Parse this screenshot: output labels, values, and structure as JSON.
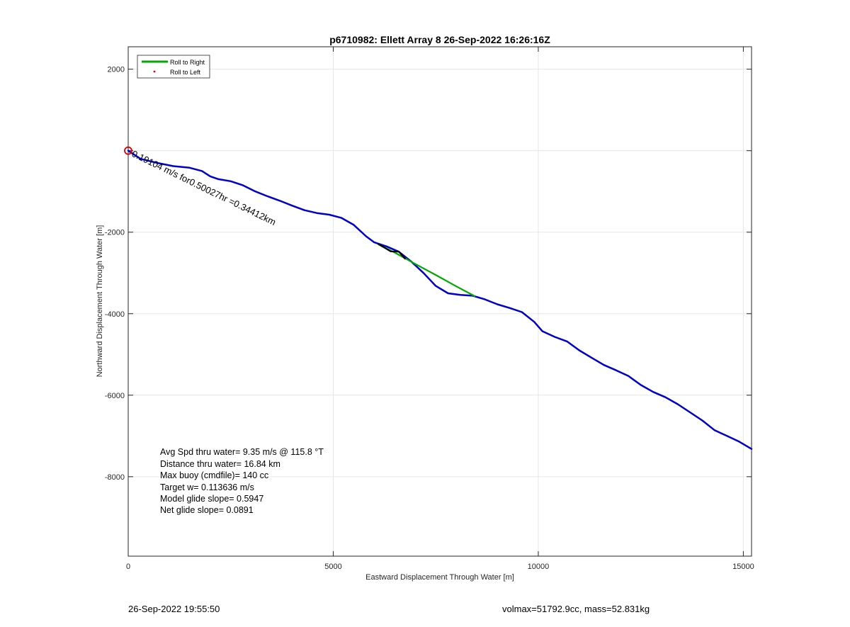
{
  "chart_data": {
    "type": "line",
    "title": "p6710982: Ellett Array 8 26-Sep-2022 16:26:16Z",
    "xlabel": "Eastward Displacement Through Water [m]",
    "ylabel": "Northward Displacement Through Water [m]",
    "xlim": [
      0,
      15200
    ],
    "ylim": [
      -9950,
      2550
    ],
    "xticks": [
      0,
      5000,
      10000,
      15000
    ],
    "yticks": [
      -8000,
      -6000,
      -4000,
      -2000,
      0,
      2000
    ],
    "ytick_labels": [
      "-8000",
      "-6000",
      "-4000",
      "-2000",
      "",
      "2000"
    ],
    "grid": true,
    "legend": {
      "placement": "top-left",
      "entries": [
        "Roll to Right",
        "Roll to Left"
      ]
    },
    "series": [
      {
        "name": "",
        "color": "#0000cc",
        "x": [
          0,
          300,
          700,
          1100,
          1500,
          1800,
          2000,
          2200,
          2500,
          2800,
          3100,
          3400,
          3700,
          4000,
          4300,
          4600,
          4900,
          5200,
          5500,
          5800,
          6000,
          6300,
          6600,
          6900,
          7200,
          7500,
          7800,
          8100,
          8400,
          8700,
          9000,
          9300,
          9600,
          9900,
          10100,
          10400,
          10700,
          11000,
          11300,
          11600,
          11900,
          12200,
          12500,
          12800,
          13100,
          13400,
          13700,
          14000,
          14300,
          14600,
          14900,
          15200
        ],
        "y": [
          0,
          -200,
          -300,
          -380,
          -420,
          -500,
          -630,
          -700,
          -750,
          -850,
          -1000,
          -1120,
          -1230,
          -1350,
          -1460,
          -1530,
          -1570,
          -1650,
          -1820,
          -2100,
          -2250,
          -2350,
          -2480,
          -2720,
          -3000,
          -3320,
          -3500,
          -3540,
          -3560,
          -3650,
          -3770,
          -3860,
          -3960,
          -4200,
          -4430,
          -4570,
          -4680,
          -4900,
          -5080,
          -5260,
          -5390,
          -5530,
          -5750,
          -5920,
          -6050,
          -6220,
          -6420,
          -6620,
          -6860,
          -7000,
          -7140,
          -7320
        ]
      },
      {
        "name": "Roll to Right",
        "color": "#00aa00",
        "x": [
          6100,
          6500,
          7000,
          7500,
          8000,
          8450
        ],
        "y": [
          -2300,
          -2500,
          -2780,
          -3050,
          -3330,
          -3570
        ]
      },
      {
        "name": "",
        "color": "#000000",
        "x": [
          6100,
          6400,
          6600,
          6750
        ],
        "y": [
          -2290,
          -2470,
          -2480,
          -2650
        ]
      }
    ],
    "start_marker": {
      "x": 0,
      "y": 0,
      "color": "#dd0000"
    },
    "annotations": {
      "diagonal_label": "0.19104 m/s for0.50027hr =0.34412km",
      "stats": [
        "Avg Spd thru water=  9.35 m/s @ 115.8 °T",
        "Distance thru water= 16.84 km",
        "Max buoy (cmdfile)= 140 cc",
        "Target w= 0.113636 m/s",
        "Model glide slope= 0.5947",
        "Net glide slope= 0.0891"
      ]
    }
  },
  "footer": {
    "left": "26-Sep-2022 19:55:50",
    "right": "volmax=51792.9cc, mass=52.831kg"
  }
}
